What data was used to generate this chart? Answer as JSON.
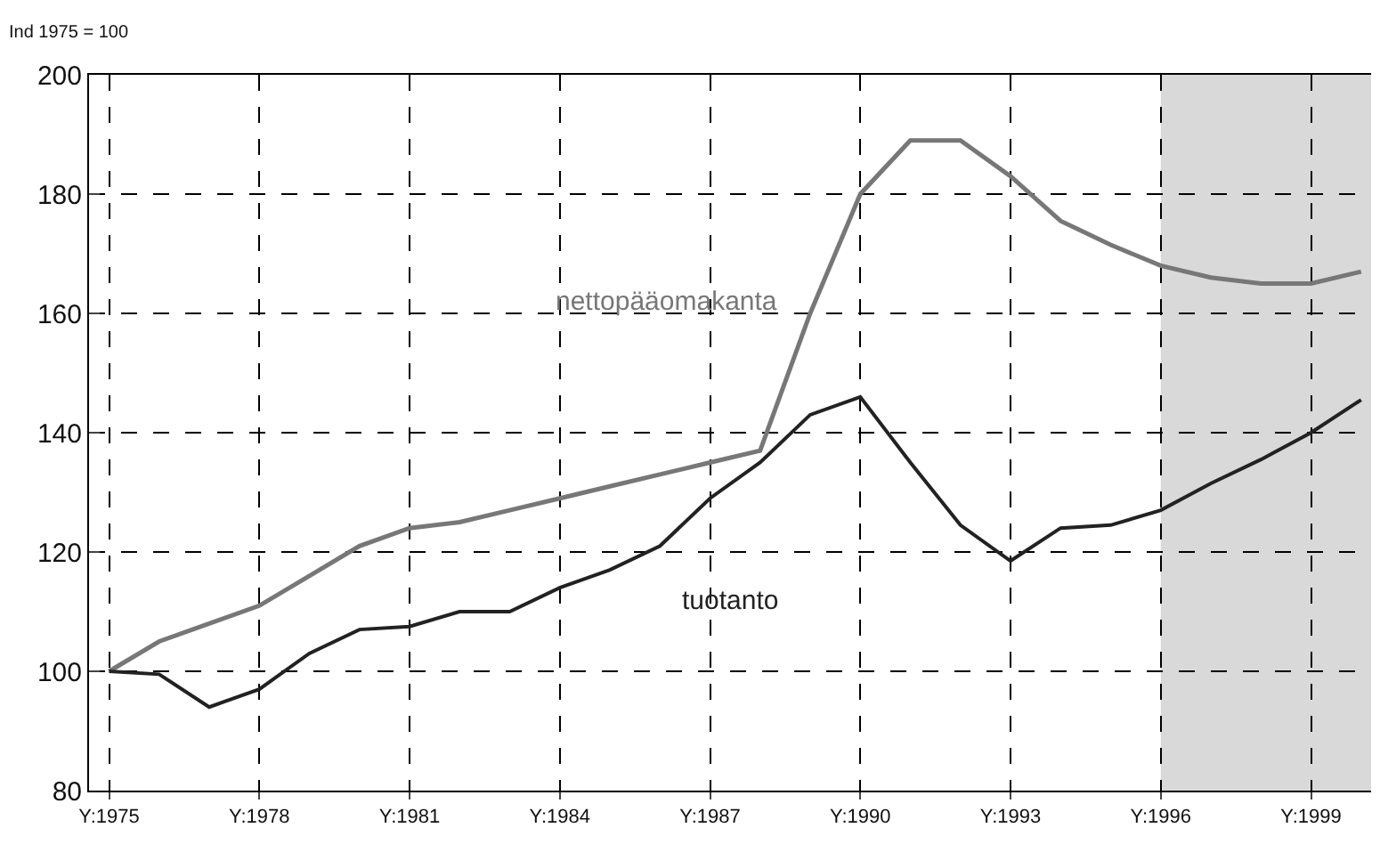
{
  "chart_data": {
    "type": "line",
    "ylabel": "Ind 1975 = 100",
    "x": [
      1975,
      1976,
      1977,
      1978,
      1979,
      1980,
      1981,
      1982,
      1983,
      1984,
      1985,
      1986,
      1987,
      1988,
      1989,
      1990,
      1991,
      1992,
      1993,
      1994,
      1995,
      1996,
      1997,
      1998,
      1999,
      2000
    ],
    "series": [
      {
        "name": "nettopääomakanta",
        "color": "#777777",
        "values": [
          100,
          105,
          108,
          111,
          116,
          121,
          124,
          125,
          127,
          129,
          131,
          133,
          135,
          137,
          160,
          180,
          189,
          189,
          183,
          175.5,
          171.5,
          168,
          166,
          165,
          165,
          167
        ]
      },
      {
        "name": "tuotanto",
        "color": "#222222",
        "values": [
          100,
          99.5,
          94,
          97,
          103,
          107,
          107.5,
          110,
          110,
          114,
          117,
          121,
          129,
          135,
          143,
          146,
          135,
          124.5,
          118.5,
          124,
          124.5,
          127,
          131.5,
          135.5,
          140,
          145.5
        ]
      }
    ],
    "xlim": [
      1974.6,
      2000.2
    ],
    "ylim": [
      80,
      200
    ],
    "xticks": [
      {
        "value": 1975,
        "label": "Y:1975"
      },
      {
        "value": 1978,
        "label": "Y:1978"
      },
      {
        "value": 1981,
        "label": "Y:1981"
      },
      {
        "value": 1984,
        "label": "Y:1984"
      },
      {
        "value": 1987,
        "label": "Y:1987"
      },
      {
        "value": 1990,
        "label": "Y:1990"
      },
      {
        "value": 1993,
        "label": "Y:1993"
      },
      {
        "value": 1996,
        "label": "Y:1996"
      },
      {
        "value": 1999,
        "label": "Y:1999"
      }
    ],
    "yticks": [
      80,
      100,
      120,
      140,
      160,
      180,
      200
    ],
    "bands": [
      {
        "axis": "x",
        "from": 1996,
        "to": 2000.2,
        "color": "#d9d9d9"
      }
    ],
    "grid": true,
    "legend": false,
    "marker": "none",
    "line_style": "solid"
  }
}
